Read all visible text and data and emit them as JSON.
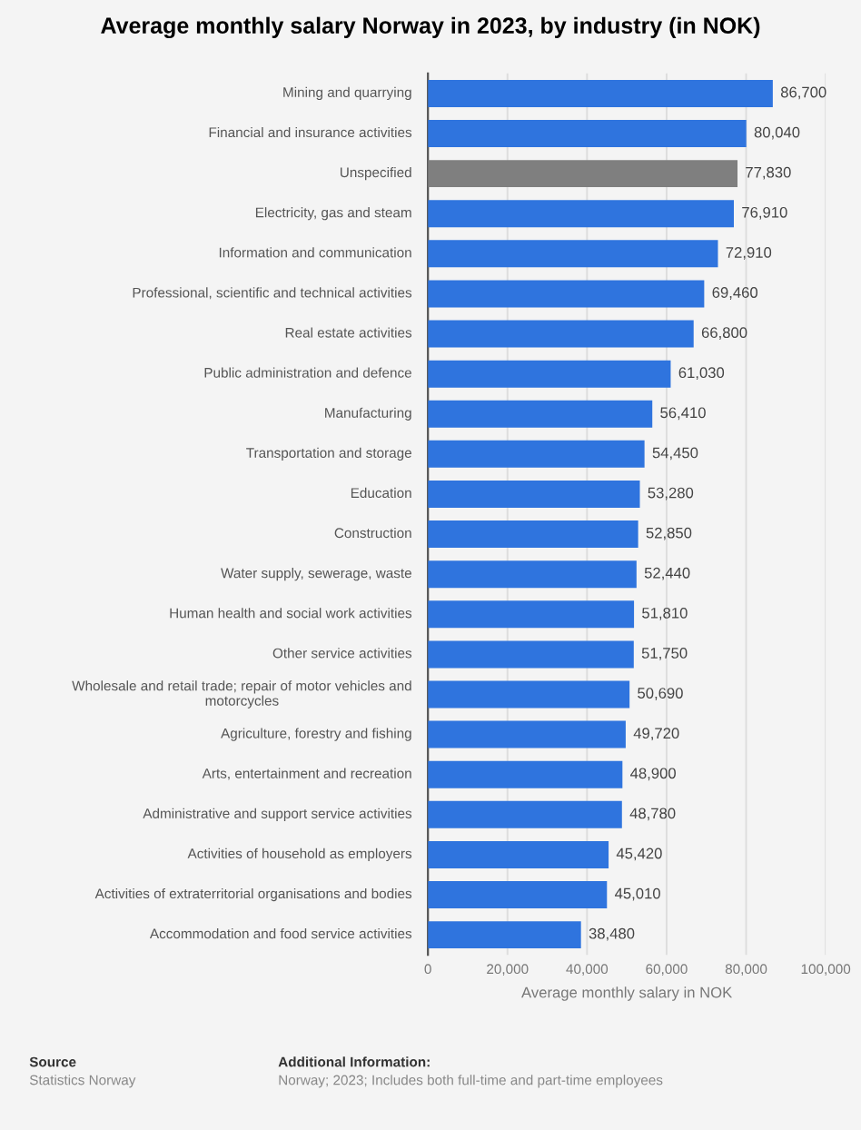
{
  "chart_data": {
    "type": "bar",
    "orientation": "horizontal",
    "title": "Average monthly salary Norway in 2023, by industry (in NOK)",
    "xlabel": "Average monthly salary in NOK",
    "categories": [
      "Mining and quarrying",
      "Financial and insurance activities",
      "Unspecified",
      "Electricity, gas and steam",
      "Information and communication",
      "Professional, scientific and technical activities",
      "Real estate activities",
      "Public administration and defence",
      "Manufacturing",
      "Transportation and storage",
      "Education",
      "Construction",
      "Water supply, sewerage, waste",
      "Human health and social work activities",
      "Other service activities",
      "Wholesale and retail trade; repair of motor vehicles and motorcycles",
      "Agriculture, forestry and fishing",
      "Arts, entertainment and recreation",
      "Administrative and support service activities",
      "Activities of household as employers",
      "Activities of extraterritorial organisations and bodies",
      "Accommodation and food service activities"
    ],
    "values": [
      86700,
      80040,
      77830,
      76910,
      72910,
      69460,
      66800,
      61030,
      56410,
      54450,
      53280,
      52850,
      52440,
      51810,
      51750,
      50690,
      49720,
      48900,
      48780,
      45420,
      45010,
      38480
    ],
    "colors": [
      "#2f74de",
      "#2f74de",
      "#7f7f7f",
      "#2f74de",
      "#2f74de",
      "#2f74de",
      "#2f74de",
      "#2f74de",
      "#2f74de",
      "#2f74de",
      "#2f74de",
      "#2f74de",
      "#2f74de",
      "#2f74de",
      "#2f74de",
      "#2f74de",
      "#2f74de",
      "#2f74de",
      "#2f74de",
      "#2f74de",
      "#2f74de",
      "#2f74de"
    ],
    "value_labels": [
      "86,700",
      "80,040",
      "77,830",
      "76,910",
      "72,910",
      "69,460",
      "66,800",
      "61,030",
      "56,410",
      "54,450",
      "53,280",
      "52,850",
      "52,440",
      "51,810",
      "51,750",
      "50,690",
      "49,720",
      "48,900",
      "48,780",
      "45,420",
      "45,010",
      "38,480"
    ],
    "xlim": [
      0,
      100000
    ],
    "xticks": [
      0,
      {
        "value": 20000,
        "label": "20,000"
      },
      {
        "value": 40000,
        "label": "40,000"
      },
      {
        "value": 60000,
        "label": "60,000"
      },
      {
        "value": 80000,
        "label": "80,000"
      },
      {
        "value": 100000,
        "label": "100,000"
      }
    ],
    "grid": "x",
    "annotations": [
      "Source",
      "Statistics Norway",
      "Additional Information:",
      "Norway; 2023; Includes both full-time and part-time employees"
    ]
  }
}
